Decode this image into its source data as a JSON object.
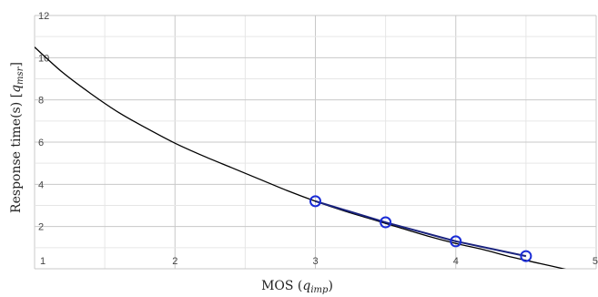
{
  "chart_data": {
    "type": "line",
    "xlabel": {
      "prefix": "MOS (",
      "var": "q",
      "sub": "imp",
      "suffix": ")"
    },
    "ylabel": {
      "prefix": "Response time(s) [",
      "var": "q",
      "sub": "msr",
      "suffix": "]"
    },
    "xlim": [
      1,
      5
    ],
    "ylim": [
      0,
      12
    ],
    "x_ticks": [
      "1",
      "2",
      "3",
      "4",
      "5"
    ],
    "y_ticks": [
      "2",
      "4",
      "6",
      "8",
      "10",
      "12"
    ],
    "grid": true,
    "curve": {
      "x": [
        1.0,
        1.2,
        1.4,
        1.6,
        1.8,
        2.0,
        2.2,
        2.4,
        2.6,
        2.8,
        3.0,
        3.2,
        3.4,
        3.6,
        3.8,
        4.0,
        4.2,
        4.4,
        4.6,
        4.8
      ],
      "y": [
        10.5,
        9.3,
        8.3,
        7.4,
        6.65,
        5.95,
        5.35,
        4.8,
        4.25,
        3.7,
        3.2,
        2.75,
        2.35,
        1.95,
        1.55,
        1.2,
        0.9,
        0.55,
        0.25,
        -0.05
      ],
      "color": "#000000"
    },
    "measured": {
      "x": [
        3.0,
        3.5,
        4.0,
        4.5
      ],
      "y": [
        3.2,
        2.2,
        1.3,
        0.6
      ],
      "color": "#1a2cd6"
    }
  }
}
